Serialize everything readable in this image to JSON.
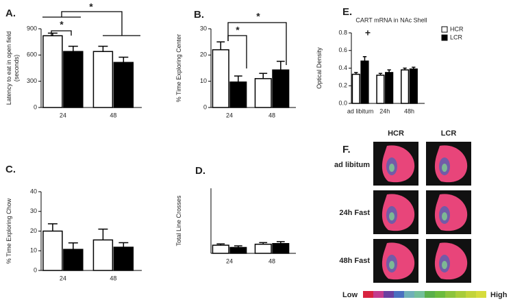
{
  "chart_data": [
    {
      "type": "bar",
      "panel": "A.",
      "ylabel": "Latency to eat in open field (seconds)",
      "categories": [
        "24",
        "48"
      ],
      "series": [
        {
          "color": "#ffffff",
          "values": [
            820,
            640
          ],
          "errors": [
            30,
            60
          ]
        },
        {
          "color": "#000000",
          "values": [
            640,
            515
          ],
          "errors": [
            60,
            60
          ]
        }
      ],
      "edgecolor": "#000000",
      "ylim": [
        0,
        900
      ],
      "yticks": [
        0,
        300,
        600,
        900
      ],
      "annotations": [
        "*",
        "*"
      ]
    },
    {
      "type": "bar",
      "panel": "B.",
      "ylabel": "% Time Exploring Center",
      "categories": [
        "24",
        "48"
      ],
      "series": [
        {
          "color": "#ffffff",
          "values": [
            22,
            11
          ],
          "errors": [
            3,
            2
          ]
        },
        {
          "color": "#000000",
          "values": [
            9.7,
            14.3
          ],
          "errors": [
            2.3,
            3.3
          ]
        }
      ],
      "edgecolor": "#000000",
      "ylim": [
        0,
        30
      ],
      "yticks": [
        0,
        10,
        20,
        30
      ],
      "annotations": [
        "*",
        "*"
      ]
    },
    {
      "type": "bar",
      "panel": "C.",
      "ylabel": "% Time Exploring Chow",
      "categories": [
        "24",
        "48"
      ],
      "series": [
        {
          "color": "#ffffff",
          "values": [
            20,
            15.5
          ],
          "errors": [
            3.7,
            5.5
          ]
        },
        {
          "color": "#000000",
          "values": [
            10.7,
            11.8
          ],
          "errors": [
            3.3,
            2.3
          ]
        }
      ],
      "edgecolor": "#000000",
      "ylim": [
        0,
        40
      ],
      "yticks": [
        0,
        10,
        20,
        30,
        40
      ]
    },
    {
      "type": "bar",
      "panel": "D.",
      "ylabel": "Total Line Crosses",
      "categories": [
        "24",
        "48"
      ],
      "series": [
        {
          "color": "#ffffff",
          "values": [
            25,
            28
          ],
          "errors": [
            4,
            5
          ]
        },
        {
          "color": "#000000",
          "values": [
            18,
            30
          ],
          "errors": [
            5,
            6
          ]
        }
      ],
      "edgecolor": "#000000",
      "ylim": [
        0,
        200
      ]
    },
    {
      "type": "bar",
      "panel": "E.",
      "title": "CART mRNA in NAc Shell",
      "ylabel": "Optical Density",
      "categories": [
        "ad libitum",
        "24h",
        "48h"
      ],
      "series": [
        {
          "name": "HCR",
          "color": "#ffffff",
          "values": [
            0.33,
            0.32,
            0.38
          ],
          "errors": [
            0.02,
            0.02,
            0.02
          ]
        },
        {
          "name": "LCR",
          "color": "#000000",
          "values": [
            0.48,
            0.35,
            0.39
          ],
          "errors": [
            0.05,
            0.03,
            0.02
          ]
        }
      ],
      "edgecolor": "#000000",
      "ylim": [
        0,
        0.8
      ],
      "yticks": [
        {
          "value": 0,
          "label": "0.0"
        },
        0.2,
        0.4,
        0.6,
        0.8
      ],
      "annotations": [
        "+"
      ]
    }
  ],
  "panel_f": {
    "panel": "F.",
    "columns": [
      "HCR",
      "LCR"
    ],
    "rows": [
      "ad libitum",
      "24h Fast",
      "48h Fast"
    ],
    "scale": {
      "low": "Low",
      "high": "High"
    }
  }
}
